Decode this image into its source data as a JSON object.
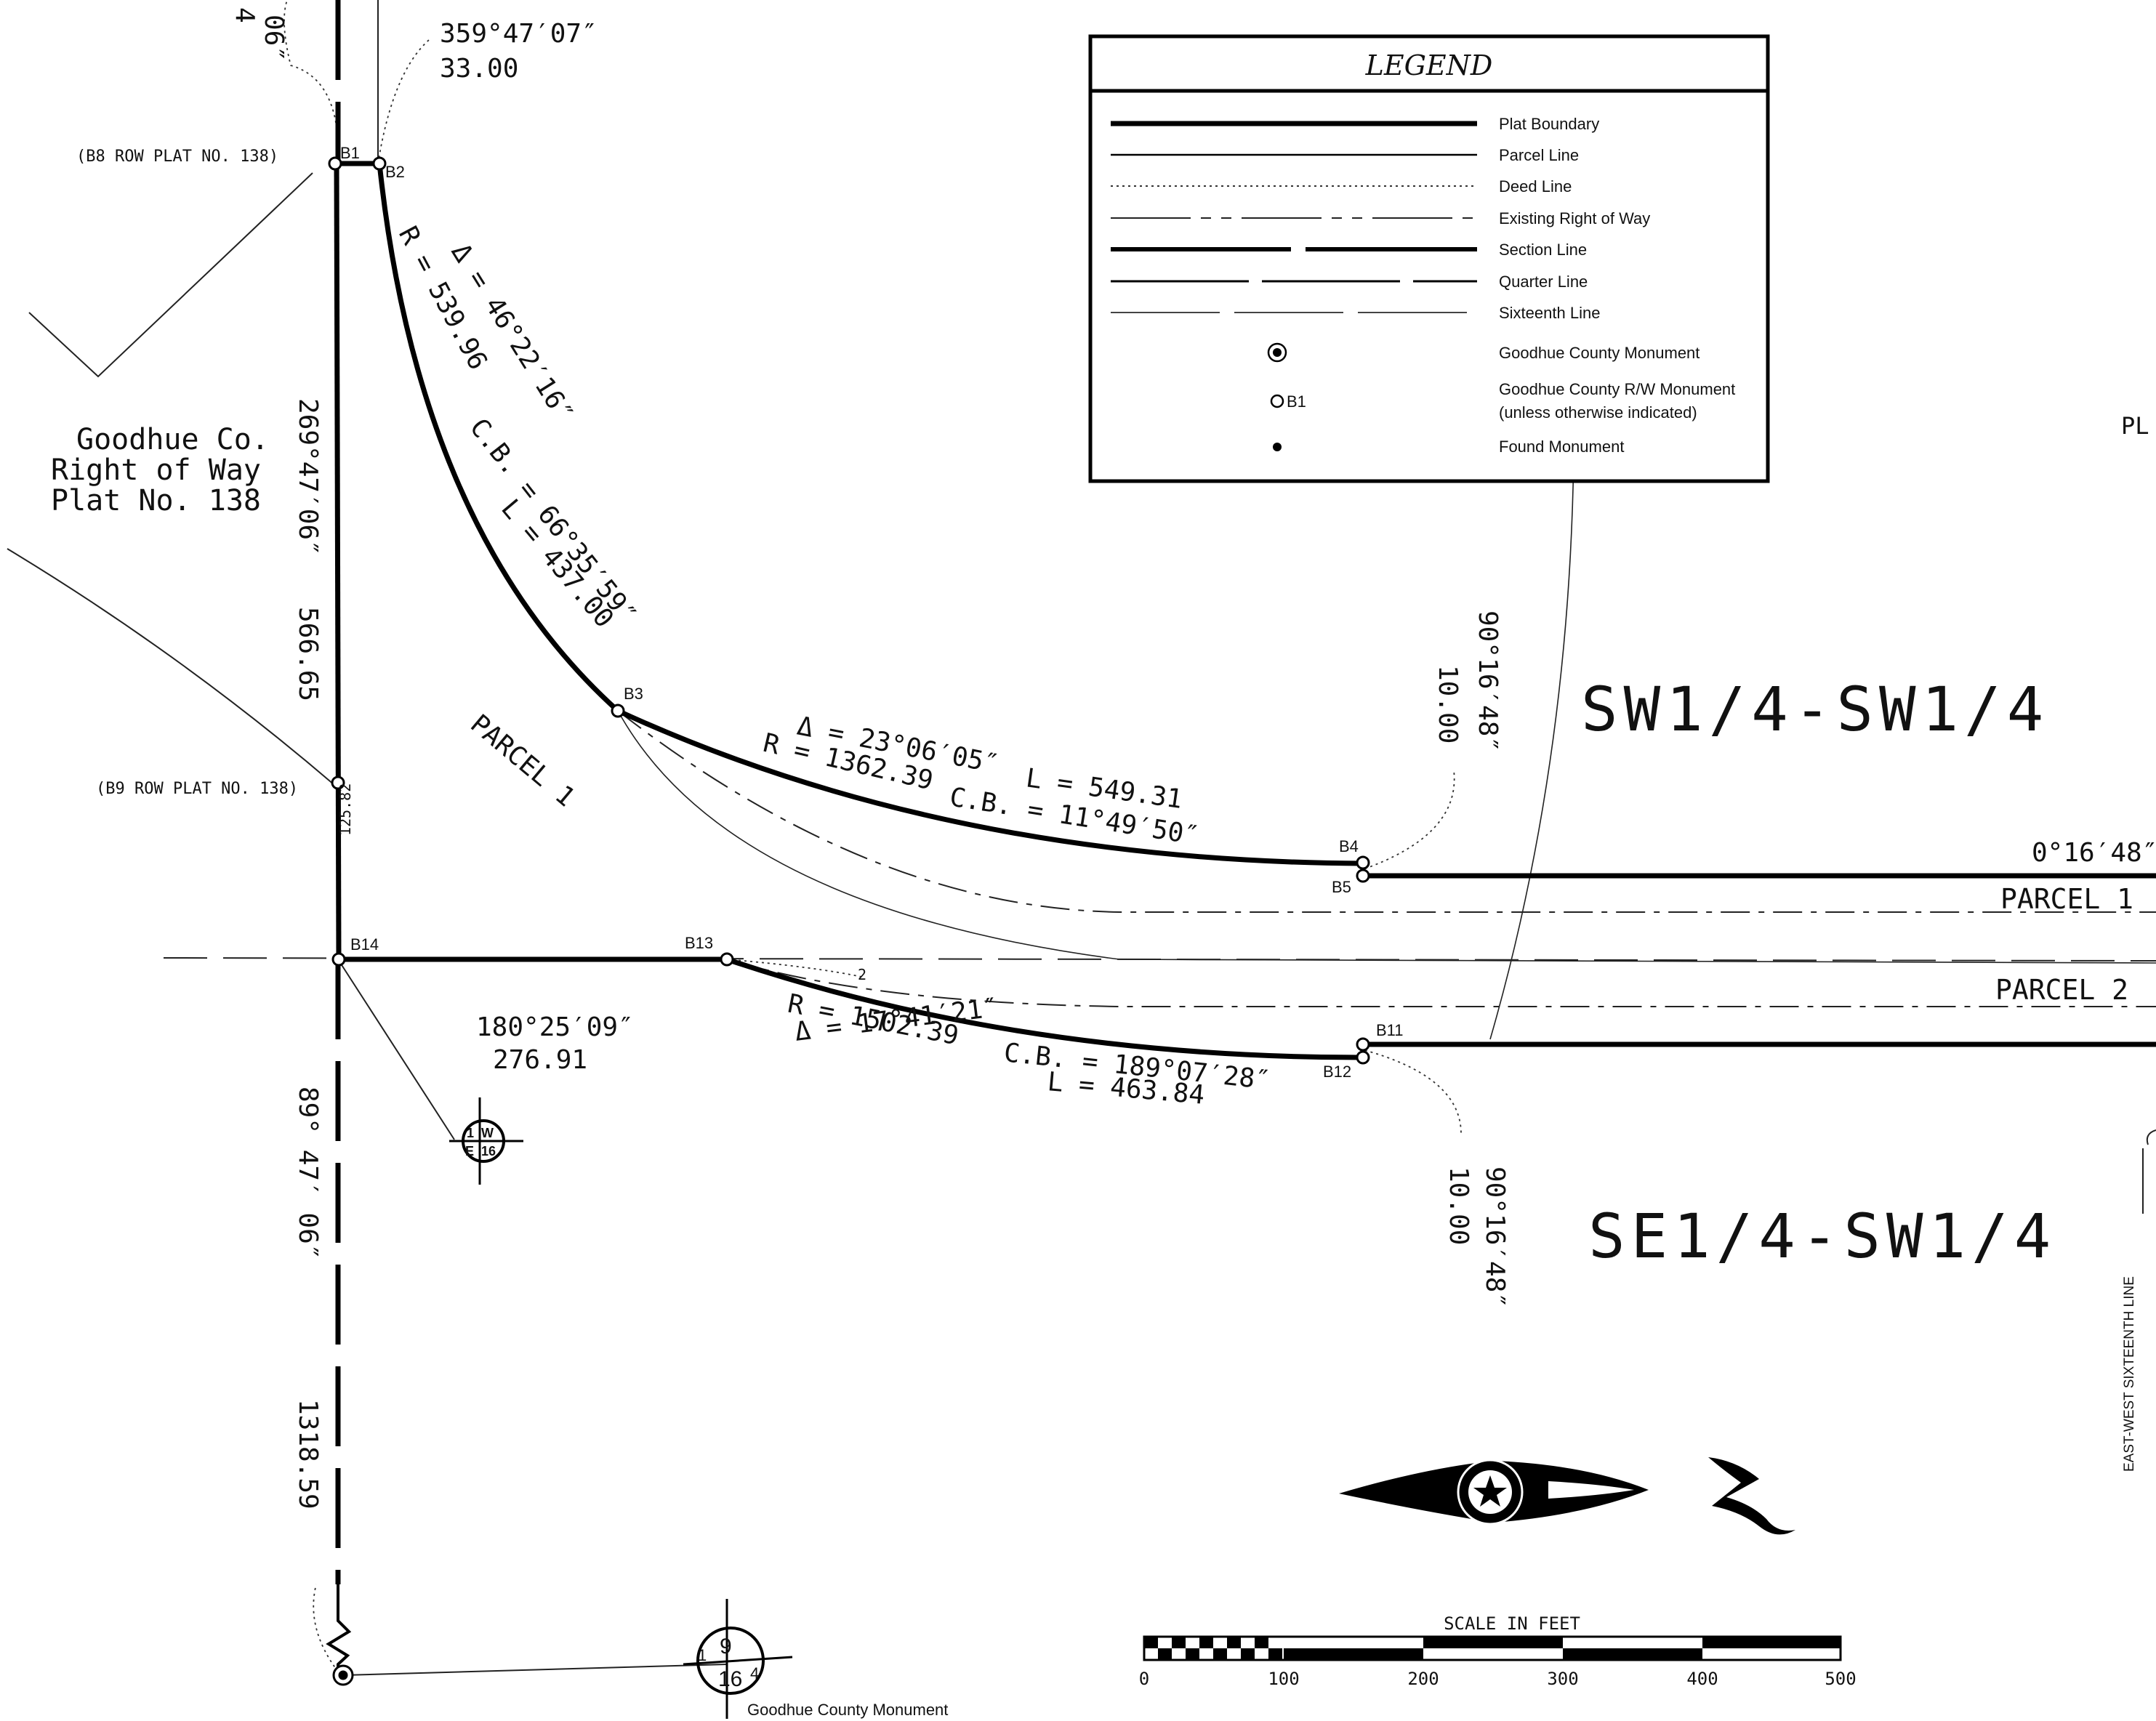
{
  "legend": {
    "title": "LEGEND",
    "items": [
      {
        "label": "Plat Boundary"
      },
      {
        "label": "Parcel Line"
      },
      {
        "label": "Deed Line"
      },
      {
        "label": "Existing Right of Way"
      },
      {
        "label": "Section Line"
      },
      {
        "label": "Quarter Line"
      },
      {
        "label": "Sixteenth Line"
      },
      {
        "label": "Goodhue County Monument"
      },
      {
        "label": "Goodhue County R/W Monument",
        "label2": "(unless otherwise indicated)",
        "symbol_text": "B1"
      },
      {
        "label": "Found Monument"
      }
    ]
  },
  "points": {
    "b1": "B1",
    "b2": "B2",
    "b3": "B3",
    "b4": "B4",
    "b5": "B5",
    "b11": "B11",
    "b12": "B12",
    "b13": "B13",
    "b14": "B14"
  },
  "labels": {
    "top_bearing": "359°47′07″",
    "top_distance": "33.00",
    "b8_ref": "(B8 ROW PLAT NO. 138)",
    "b9_ref": "(B9 ROW PLAT NO. 138)",
    "top_left_partial_1": "4",
    "top_left_partial_2": "06″",
    "row_plat_line1": "Goodhue Co.",
    "row_plat_line2": "Right of Way",
    "row_plat_line3": "Plat No. 138",
    "west_bearing": "269°47′06″",
    "west_distance": "566.65",
    "segment_b9_b14": "125.82",
    "curve1_delta": "Δ = 46°22′16″",
    "curve1_length": "L = 437.00",
    "curve1_radius": "R = 539.96",
    "curve1_cb": "C.B. = 66°35′59″",
    "parcel1_diag": "PARCEL 1",
    "curve2_delta": "Δ = 23°06′05″",
    "curve2_length": "L = 549.31",
    "curve2_radius": "R = 1362.39",
    "curve2_cb": "C.B. = 11°49′50″",
    "east_upper_bearing": "90°16′48″",
    "east_upper_distance": "10.00",
    "quarter_upper": "SW1/4-SW1/4",
    "quarter_lower": "SE1/4-SW1/4",
    "right_bearing": "0°16′48″",
    "parcel1_right": "PARCEL 1",
    "parcel2_right": "PARCEL 2",
    "south_bearing": "180°25′09″",
    "south_distance": "276.91",
    "small_2": "2",
    "curve3_radius": "R = 1502.39",
    "curve3_cb": "C.B. = 189°07′28″",
    "curve3_delta": "Δ = 17°41′21″",
    "curve3_length": "L = 463.84",
    "east_lower_bearing": "90°16′48″",
    "east_lower_distance": "10.00",
    "west_lower_bearing": "89° 47′ 06″",
    "west_lower_distance": "1318.59",
    "corner_monument_label": "Goodhue County Monument",
    "pl_partial": "PL",
    "east_west_line": "EAST-WEST SIXTEENTH LINE",
    "corner1_text_a": "1",
    "corner1_text_b": "W",
    "corner1_text_c": "E",
    "corner1_text_d": "16",
    "corner2_text_a": "9",
    "corner2_text_b": "16",
    "corner2_text_c": "1",
    "corner2_text_d": "4"
  },
  "scale": {
    "title": "SCALE IN FEET",
    "ticks": [
      "0",
      "100",
      "200",
      "300",
      "400",
      "500"
    ]
  }
}
